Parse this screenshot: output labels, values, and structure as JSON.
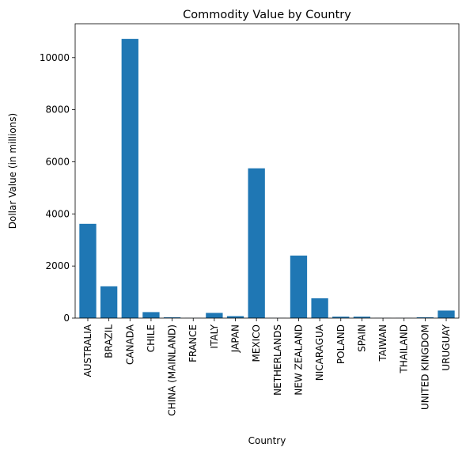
{
  "chart_data": {
    "type": "bar",
    "title": "Commodity Value by Country",
    "xlabel": "Country",
    "ylabel": "Dollar Value (in millions)",
    "categories": [
      "AUSTRALIA",
      "BRAZIL",
      "CANADA",
      "CHILE",
      "CHINA (MAINLAND)",
      "FRANCE",
      "ITALY",
      "JAPAN",
      "MEXICO",
      "NETHERLANDS",
      "NEW ZEALAND",
      "NICARAGUA",
      "POLAND",
      "SPAIN",
      "TAIWAN",
      "THAILAND",
      "UNITED KINGDOM",
      "URUGUAY"
    ],
    "values": [
      3620,
      1220,
      10720,
      230,
      30,
      5,
      200,
      75,
      5750,
      5,
      2400,
      760,
      55,
      55,
      5,
      5,
      30,
      290
    ],
    "ylim": [
      0,
      11300
    ],
    "yticks": [
      0,
      2000,
      4000,
      6000,
      8000,
      10000
    ],
    "grid": false,
    "legend": "none",
    "bar_color": "#1f77b4"
  }
}
